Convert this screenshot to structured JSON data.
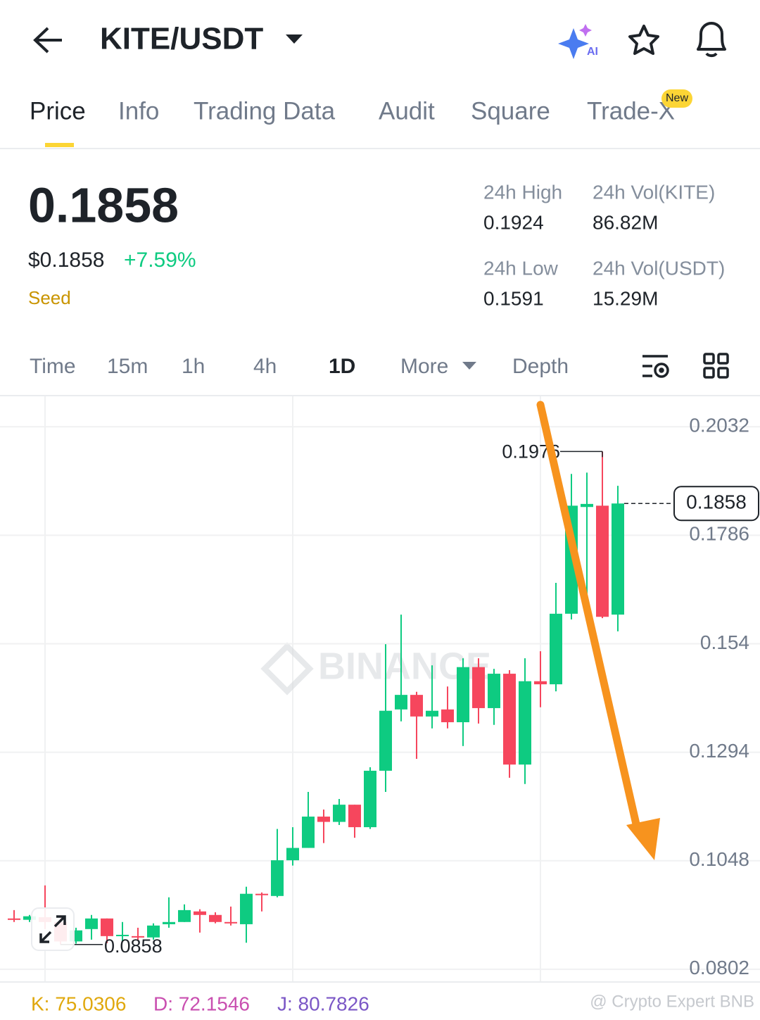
{
  "header": {
    "pair": "KITE/USDT"
  },
  "tabs": [
    "Price",
    "Info",
    "Trading Data",
    "Audit",
    "Square",
    "Trade-X"
  ],
  "new_badge": "New",
  "price": {
    "last": "0.1858",
    "usd": "$0.1858",
    "change": "+7.59%",
    "tag": "Seed"
  },
  "stats": [
    {
      "label": "24h High",
      "value": "0.1924"
    },
    {
      "label": "24h Vol(KITE)",
      "value": "86.82M"
    },
    {
      "label": "24h Low",
      "value": "0.1591"
    },
    {
      "label": "24h Vol(USDT)",
      "value": "15.29M"
    }
  ],
  "intervals": [
    "Time",
    "15m",
    "1h",
    "4h",
    "1D",
    "More",
    "Depth"
  ],
  "chart_data": {
    "type": "candlestick",
    "categories": [
      null,
      null,
      null,
      null,
      null,
      null,
      null,
      null,
      null,
      null,
      null,
      null,
      null,
      null,
      null,
      null,
      null,
      null,
      null,
      null,
      null,
      null,
      null,
      null,
      null,
      null,
      null,
      null,
      null,
      null,
      null,
      null,
      null,
      null,
      null,
      null,
      null,
      null,
      null,
      null
    ],
    "open": [
      0.0917,
      0.0914,
      0.092,
      0.0909,
      0.0865,
      0.0893,
      0.0917,
      0.0877,
      0.0877,
      0.0874,
      0.0904,
      0.0909,
      0.0933,
      0.0925,
      0.0909,
      0.0904,
      0.0973,
      0.0968,
      0.1049,
      0.1077,
      0.1148,
      0.1136,
      0.1175,
      0.1124,
      0.1252,
      0.1391,
      0.1424,
      0.1375,
      0.1391,
      0.1362,
      0.1487,
      0.1394,
      0.1472,
      0.1266,
      0.1455,
      0.1448,
      0.1608,
      0.185,
      0.1853,
      0.1606
    ],
    "high": [
      0.0936,
      0.0925,
      0.0992,
      0.0925,
      0.0896,
      0.0925,
      0.0917,
      0.0909,
      0.0896,
      0.0906,
      0.0965,
      0.0949,
      0.0938,
      0.0931,
      0.0944,
      0.0989,
      0.0976,
      0.112,
      0.1124,
      0.1204,
      0.1164,
      0.1188,
      0.1175,
      0.126,
      0.1539,
      0.1606,
      0.1431,
      0.1491,
      0.1443,
      0.1507,
      0.1507,
      0.1483,
      0.148,
      0.1507,
      0.1523,
      0.1678,
      0.1925,
      0.1928,
      0.1976,
      0.1898
    ],
    "low": [
      0.0909,
      0.0909,
      0.0893,
      0.0858,
      0.086,
      0.0869,
      0.0861,
      0.0864,
      0.0866,
      0.0869,
      0.0896,
      0.0909,
      0.0885,
      0.0906,
      0.0901,
      0.0862,
      0.0933,
      0.0965,
      0.1037,
      0.1077,
      0.1088,
      0.1129,
      0.11,
      0.112,
      0.1204,
      0.1364,
      0.1279,
      0.1348,
      0.1348,
      0.1308,
      0.1359,
      0.1356,
      0.1236,
      0.1222,
      0.1396,
      0.1432,
      0.1595,
      0.1595,
      0.1598,
      0.1568
    ],
    "close": [
      0.0914,
      0.0922,
      0.0909,
      0.0865,
      0.089,
      0.0917,
      0.0877,
      0.088,
      0.0874,
      0.0901,
      0.0909,
      0.0936,
      0.0925,
      0.0909,
      0.0906,
      0.0973,
      0.097,
      0.1049,
      0.1077,
      0.1148,
      0.1136,
      0.1175,
      0.1124,
      0.1252,
      0.1388,
      0.1424,
      0.1375,
      0.1388,
      0.1362,
      0.1487,
      0.1394,
      0.1472,
      0.1266,
      0.1455,
      0.1448,
      0.1608,
      0.1853,
      0.1857,
      0.1601,
      0.1858
    ],
    "up_color": "#0ecb81",
    "down_color": "#f6465d",
    "ylim": [
      0.0773,
      0.2101
    ],
    "yticks": [
      0.2032,
      0.1786,
      0.154,
      0.1294,
      0.1048,
      0.0802
    ],
    "grid": true
  },
  "indicators": [
    "K: 75.0306",
    "D: 72.1546",
    "J: 80.7826"
  ],
  "watermark": "BINANCE",
  "credit": "@ Crypto Expert BNB"
}
